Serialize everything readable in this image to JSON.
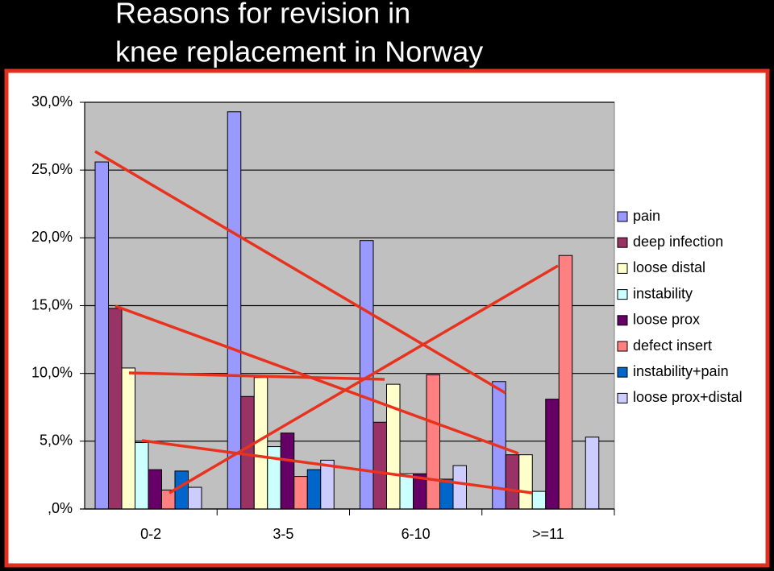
{
  "chart_data": {
    "type": "bar",
    "title_lines": [
      "Reasons for revision in",
      "knee replacement in Norway"
    ],
    "categories": [
      "0-2",
      "3-5",
      "6-10",
      ">=11"
    ],
    "series": [
      {
        "name": "pain",
        "color": "#9999ff",
        "values": [
          25.6,
          29.3,
          19.8,
          9.4
        ]
      },
      {
        "name": "deep infection",
        "color": "#993366",
        "values": [
          14.8,
          8.3,
          6.4,
          4.0
        ]
      },
      {
        "name": "loose distal",
        "color": "#ffffcc",
        "values": [
          10.4,
          9.7,
          9.2,
          4.0
        ]
      },
      {
        "name": "instability",
        "color": "#ccffff",
        "values": [
          4.9,
          4.6,
          2.6,
          1.3
        ]
      },
      {
        "name": "loose prox",
        "color": "#660066",
        "values": [
          2.9,
          5.6,
          2.6,
          8.1
        ]
      },
      {
        "name": "defect insert",
        "color": "#ff8080",
        "values": [
          1.4,
          2.4,
          9.9,
          18.7
        ]
      },
      {
        "name": "instability+pain",
        "color": "#0066cc",
        "values": [
          2.8,
          2.9,
          2.2,
          0
        ]
      },
      {
        "name": "loose prox+distal",
        "color": "#ccccff",
        "values": [
          1.6,
          3.6,
          3.2,
          5.3
        ]
      }
    ],
    "ylim": [
      0,
      30
    ],
    "yticks": [
      {
        "value": 0,
        "label": ",0%"
      },
      {
        "value": 5,
        "label": "5,0%"
      },
      {
        "value": 10,
        "label": "10,0%"
      },
      {
        "value": 15,
        "label": "15,0%"
      },
      {
        "value": 20,
        "label": "20,0%"
      },
      {
        "value": 25,
        "label": "25,0%"
      },
      {
        "value": 30,
        "label": "30,0%"
      }
    ],
    "grid": true,
    "legend": "right"
  }
}
